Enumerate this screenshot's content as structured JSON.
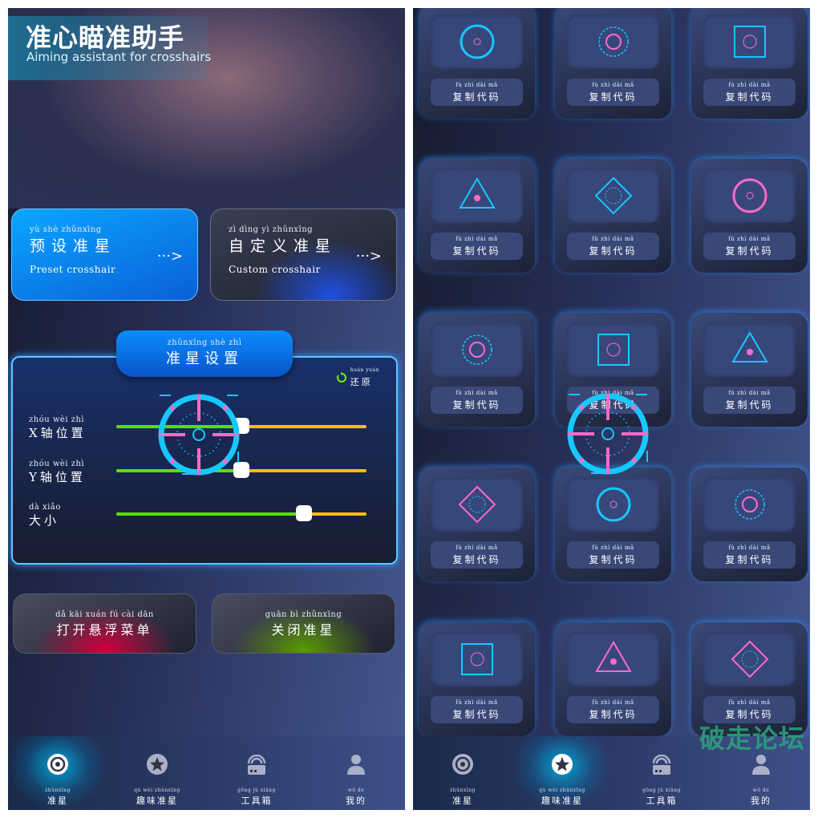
{
  "header": {
    "title": "准心瞄准助手",
    "subtitle": "Aiming assistant for crosshairs"
  },
  "modes": [
    {
      "pinyin": "yù  shè zhǔnxīng",
      "label": "预设准星",
      "en": "Preset crosshair",
      "arrow": "···>"
    },
    {
      "pinyin": "zì  dìng  yì  zhǔnxīng",
      "label": "自定义准星",
      "en": "Custom crosshair",
      "arrow": "···>"
    }
  ],
  "settings": {
    "pinyin": "zhǔnxīng shè  zhì",
    "title": "准星设置",
    "reset": {
      "pinyin": "huán yuán",
      "label": "还原",
      "icon": "reset-icon"
    },
    "sliders": [
      {
        "pinyin": "zhóu wèi  zhì",
        "label": "X轴位置",
        "value": 0.5
      },
      {
        "pinyin": "zhóu wèi  zhì",
        "label": "Y轴位置",
        "value": 0.5
      },
      {
        "pinyin": "dà  xiǎo",
        "label": "大小",
        "value": 0.75
      }
    ]
  },
  "actions": [
    {
      "pinyin": "dǎ  kāi xuán  fú   cài  dān",
      "label": "打开悬浮菜单"
    },
    {
      "pinyin": "guān  bì  zhǔnxīng",
      "label": "关闭准星"
    }
  ],
  "nav": [
    {
      "pinyin": "zhǔnxīng",
      "label": "准星",
      "icon": "crosshair-icon"
    },
    {
      "pinyin": "qù  wèi zhǔnxīng",
      "label": "趣味准星",
      "icon": "star-icon"
    },
    {
      "pinyin": "gōng  jù  xiāng",
      "label": "工具箱",
      "icon": "toolbox-icon"
    },
    {
      "pinyin": "wǒ  de",
      "label": "我的",
      "icon": "user-icon"
    }
  ],
  "left_active_nav": 0,
  "right_active_nav": 1,
  "crosshair_card": {
    "pinyin": "fù  zhì  dài  mǎ",
    "label": "复制代码"
  },
  "colors": {
    "accent": "#0a8cff",
    "slider_fill": "#58e000",
    "slider_track": "#ffbf00",
    "crosshair_cyan": "#16c8ff",
    "crosshair_pink": "#ff6ac8"
  },
  "watermark": "破走论坛"
}
